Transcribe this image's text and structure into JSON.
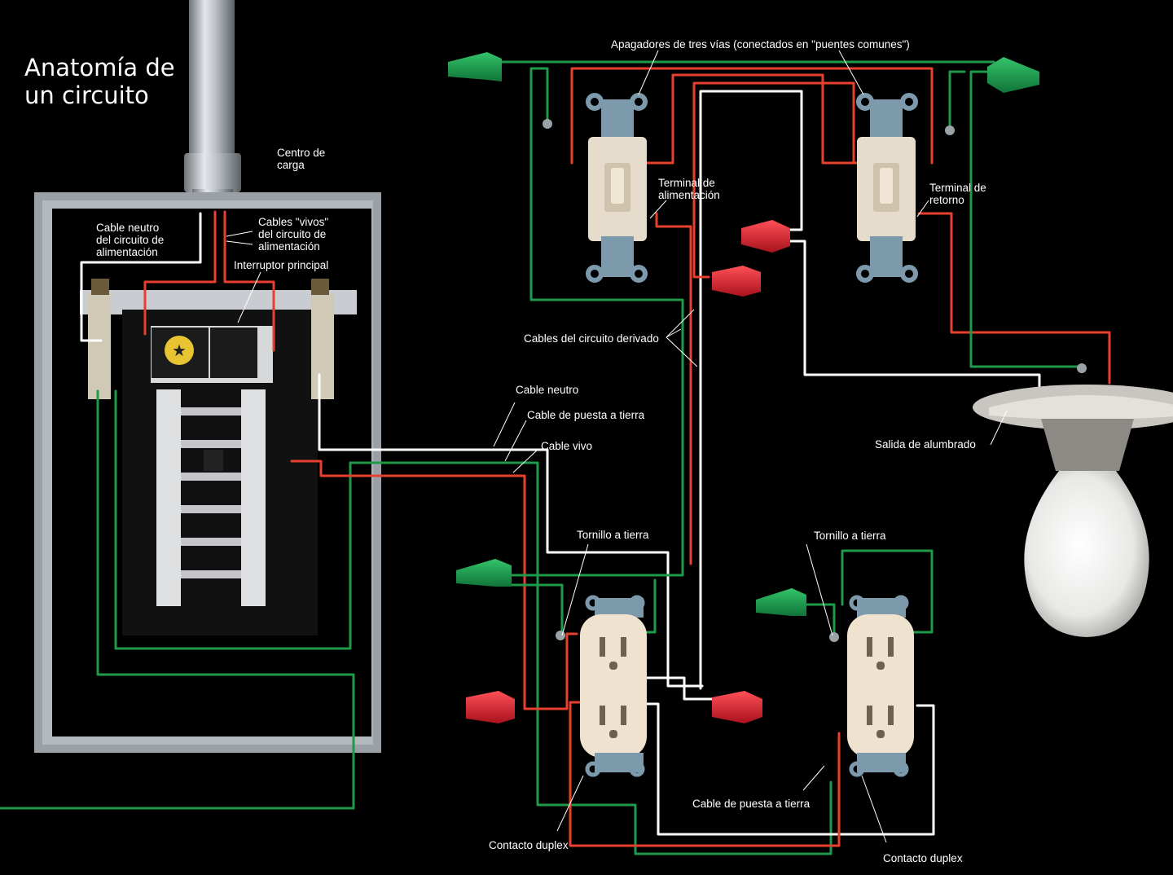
{
  "title": "Anatomía de\nun circuito",
  "labels": {
    "centro_carga": "Centro de\ncarga",
    "cable_neutro_alim": "Cable neutro\ndel circuito de\nalimentación",
    "cables_vivos": "Cables \"vivos\"\ndel circuito de\nalimentación",
    "interruptor_principal": "Interruptor principal",
    "apagadores": "Apagadores de tres vías (conectados en \"puentes comunes\")",
    "terminal_alimentacion": "Terminal de\nalimentación",
    "terminal_retorno": "Terminal de\nretorno",
    "cables_derivado": "Cables del circuito derivado",
    "cable_neutro": "Cable neutro",
    "cable_tierra_1": "Cable de puesta a tierra",
    "cable_vivo": "Cable vivo",
    "salida_alumbrado": "Salida de alumbrado",
    "tornillo_tierra_1": "Tornillo a tierra",
    "tornillo_tierra_2": "Tornillo a tierra",
    "cable_tierra_2": "Cable de puesta a tierra",
    "contacto_duplex_1": "Contacto duplex",
    "contacto_duplex_2": "Contacto duplex"
  },
  "colors": {
    "background": "#000000",
    "hot_wire": "#e8402e",
    "neutral_wire": "#ffffff",
    "ground_wire": "#1f9a4a",
    "wire_nut_green": "#1e9a4c",
    "wire_nut_red": "#e02a35",
    "panel_frame": "#8a8f96",
    "outlet_body": "#efe3cf",
    "switch_body": "#e6dccb"
  }
}
